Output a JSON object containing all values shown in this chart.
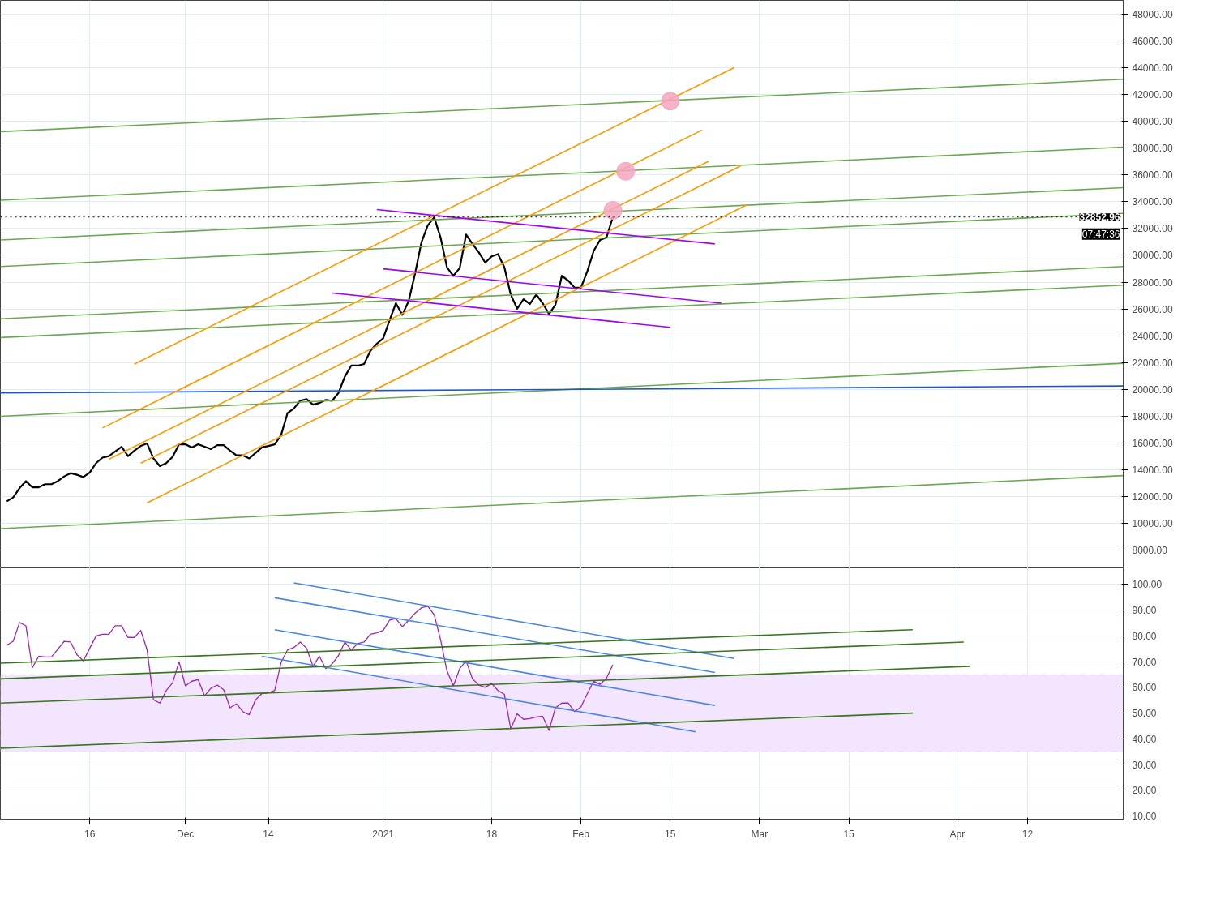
{
  "chart_data": [
    {
      "type": "line",
      "x": [
        "2020-11-03",
        "2020-11-04",
        "2020-11-05",
        "2020-11-06",
        "2020-11-07",
        "2020-11-08",
        "2020-11-09",
        "2020-11-10",
        "2020-11-11",
        "2020-11-12",
        "2020-11-13",
        "2020-11-14",
        "2020-11-15",
        "2020-11-16",
        "2020-11-17",
        "2020-11-18",
        "2020-11-19",
        "2020-11-20",
        "2020-11-21",
        "2020-11-22",
        "2020-11-23",
        "2020-11-24",
        "2020-11-25",
        "2020-11-26",
        "2020-11-27",
        "2020-11-28",
        "2020-11-29",
        "2020-11-30",
        "2020-12-01",
        "2020-12-02",
        "2020-12-03",
        "2020-12-04",
        "2020-12-05",
        "2020-12-06",
        "2020-12-07",
        "2020-12-08",
        "2020-12-09",
        "2020-12-10",
        "2020-12-11",
        "2020-12-12",
        "2020-12-13",
        "2020-12-14",
        "2020-12-15",
        "2020-12-16",
        "2020-12-17",
        "2020-12-18",
        "2020-12-19",
        "2020-12-20",
        "2020-12-21",
        "2020-12-22",
        "2020-12-23",
        "2020-12-24",
        "2020-12-25",
        "2020-12-26",
        "2020-12-27",
        "2020-12-28",
        "2020-12-29",
        "2020-12-30",
        "2020-12-31",
        "2021-01-01",
        "2021-01-02",
        "2021-01-03",
        "2021-01-04",
        "2021-01-05",
        "2021-01-06",
        "2021-01-07",
        "2021-01-08",
        "2021-01-09",
        "2021-01-10",
        "2021-01-11",
        "2021-01-12",
        "2021-01-13",
        "2021-01-14",
        "2021-01-15",
        "2021-01-16",
        "2021-01-17",
        "2021-01-18",
        "2021-01-19",
        "2021-01-20",
        "2021-01-21",
        "2021-01-22",
        "2021-01-23",
        "2021-01-24",
        "2021-01-25",
        "2021-01-26",
        "2021-01-27",
        "2021-01-28",
        "2021-01-29",
        "2021-01-30",
        "2021-01-31",
        "2021-02-01",
        "2021-02-02",
        "2021-02-03",
        "2021-02-04",
        "2021-02-05",
        "2021-02-06"
      ],
      "series": [
        {
          "color": "#000000",
          "values": [
            11660,
            11950,
            12650,
            13170,
            12710,
            12710,
            12940,
            12940,
            13170,
            13520,
            13760,
            13640,
            13470,
            13810,
            14510,
            14920,
            15030,
            15380,
            15730,
            15030,
            15440,
            15790,
            15970,
            14860,
            14280,
            14510,
            14980,
            15910,
            15910,
            15680,
            15910,
            15730,
            15560,
            15850,
            15850,
            15440,
            15090,
            15090,
            14860,
            15270,
            15680,
            15790,
            15910,
            16600,
            18230,
            18580,
            19160,
            19280,
            18870,
            18990,
            19220,
            19160,
            19740,
            20970,
            21780,
            21780,
            21900,
            22880,
            23410,
            23810,
            25150,
            26430,
            25560,
            26600,
            28640,
            30970,
            32240,
            32830,
            31320,
            29100,
            28470,
            29050,
            31550,
            30850,
            30210,
            29450,
            29920,
            30090,
            29100,
            27070,
            26020,
            26720,
            26370,
            27070,
            26430,
            25620,
            26310,
            28470,
            28120,
            27590,
            27590,
            28810,
            30330,
            31140,
            31320,
            32850
          ]
        },
        {
          "color": "#6aa84f",
          "x": [
            "2020-11-02",
            "2021-04-27"
          ],
          "values": [
            39220,
            43120
          ]
        },
        {
          "color": "#6aa84f",
          "x": [
            "2020-11-02",
            "2021-04-27"
          ],
          "values": [
            34100,
            38060
          ]
        },
        {
          "color": "#6aa84f",
          "x": [
            "2020-11-02",
            "2021-04-27"
          ],
          "values": [
            31140,
            35040
          ]
        },
        {
          "color": "#6aa84f",
          "x": [
            "2020-11-02",
            "2021-04-27"
          ],
          "values": [
            29160,
            33120
          ]
        },
        {
          "color": "#6aa84f",
          "x": [
            "2020-11-02",
            "2021-04-27"
          ],
          "values": [
            25270,
            29160
          ]
        },
        {
          "color": "#6aa84f",
          "x": [
            "2020-11-02",
            "2021-04-27"
          ],
          "values": [
            23870,
            27770
          ]
        },
        {
          "color": "#6aa84f",
          "x": [
            "2020-11-02",
            "2021-04-27"
          ],
          "values": [
            18000,
            21950
          ]
        },
        {
          "color": "#6aa84f",
          "x": [
            "2020-11-02",
            "2021-04-27"
          ],
          "values": [
            9630,
            13580
          ]
        },
        {
          "color": "#1c56c9",
          "x": [
            "2020-11-02",
            "2021-04-27"
          ],
          "values": [
            19740,
            20260
          ]
        },
        {
          "color": "#ff9800",
          "x": [
            "2020-11-23",
            "2021-02-25"
          ],
          "values": [
            21900,
            43990
          ]
        },
        {
          "color": "#ff9800",
          "x": [
            "2020-11-18",
            "2021-02-20"
          ],
          "values": [
            17130,
            39340
          ]
        },
        {
          "color": "#ff9800",
          "x": [
            "2020-11-19",
            "2021-02-21"
          ],
          "values": [
            14800,
            37010
          ]
        },
        {
          "color": "#ff9800",
          "x": [
            "2020-11-24",
            "2021-02-26"
          ],
          "values": [
            14510,
            36660
          ]
        },
        {
          "color": "#ff9800",
          "x": [
            "2020-11-25",
            "2021-02-27"
          ],
          "values": [
            11550,
            33760
          ]
        },
        {
          "color": "#a100f2",
          "x": [
            "2020-12-31",
            "2021-02-22"
          ],
          "values": [
            33410,
            30850
          ]
        },
        {
          "color": "#a100f2",
          "x": [
            "2021-01-01",
            "2021-02-23"
          ],
          "values": [
            28990,
            26430
          ]
        },
        {
          "color": "#a100f2",
          "x": [
            "2020-12-24",
            "2021-02-15"
          ],
          "values": [
            27190,
            24630
          ]
        },
        {
          "type": "scatter",
          "marker": "circle",
          "color": "#f4a6c0",
          "x": [
            "2021-02-15",
            "2021-02-08",
            "2021-02-06"
          ],
          "values": [
            41490,
            36260,
            33350
          ]
        }
      ],
      "xlim": [
        "2020-11-02",
        "2021-04-27"
      ],
      "ylim": [
        6700,
        49000
      ],
      "xticks": [
        {
          "value": "2020-11-16",
          "label": null
        },
        {
          "value": "2020-12-01",
          "label": null
        },
        {
          "value": "2020-12-14",
          "label": null
        },
        {
          "value": "2021-01-01",
          "label": null
        },
        {
          "value": "2021-01-18",
          "label": null
        },
        {
          "value": "2021-02-01",
          "label": null
        },
        {
          "value": "2021-02-15",
          "label": null
        },
        {
          "value": "2021-03-01",
          "label": null
        },
        {
          "value": "2021-03-15",
          "label": null
        },
        {
          "value": "2021-04-01",
          "label": null
        },
        {
          "value": "2021-04-12",
          "label": null
        }
      ],
      "yticks": [
        {
          "value": 8000,
          "label": "8000.00"
        },
        {
          "value": 10000,
          "label": "10000.00"
        },
        {
          "value": 12000,
          "label": "12000.00"
        },
        {
          "value": 14000,
          "label": "14000.00"
        },
        {
          "value": 16000,
          "label": "16000.00"
        },
        {
          "value": 18000,
          "label": "18000.00"
        },
        {
          "value": 20000,
          "label": "20000.00"
        },
        {
          "value": 22000,
          "label": "22000.00"
        },
        {
          "value": 24000,
          "label": "24000.00"
        },
        {
          "value": 26000,
          "label": "26000.00"
        },
        {
          "value": 28000,
          "label": "28000.00"
        },
        {
          "value": 30000,
          "label": "30000.00"
        },
        {
          "value": 32000,
          "label": "32000.00"
        },
        {
          "value": 34000,
          "label": "34000.00"
        },
        {
          "value": 36000,
          "label": "36000.00"
        },
        {
          "value": 38000,
          "label": "38000.00"
        },
        {
          "value": 40000,
          "label": "40000.00"
        },
        {
          "value": 42000,
          "label": "42000.00"
        },
        {
          "value": 44000,
          "label": "44000.00"
        },
        {
          "value": 46000,
          "label": "46000.00"
        },
        {
          "value": 48000,
          "label": "48000.00"
        }
      ],
      "ref_lines": [
        {
          "axis": "y",
          "value": 32852.96,
          "label": "32852.96",
          "color": "#000000",
          "line_style": "dotted"
        }
      ],
      "annotations": [
        "07:47:36"
      ],
      "grid": true,
      "tick_labels": "y"
    },
    {
      "type": "line",
      "x": [
        "2020-11-03",
        "2020-11-04",
        "2020-11-05",
        "2020-11-06",
        "2020-11-07",
        "2020-11-08",
        "2020-11-09",
        "2020-11-10",
        "2020-11-11",
        "2020-11-12",
        "2020-11-13",
        "2020-11-14",
        "2020-11-15",
        "2020-11-16",
        "2020-11-17",
        "2020-11-18",
        "2020-11-19",
        "2020-11-20",
        "2020-11-21",
        "2020-11-22",
        "2020-11-23",
        "2020-11-24",
        "2020-11-25",
        "2020-11-26",
        "2020-11-27",
        "2020-11-28",
        "2020-11-29",
        "2020-11-30",
        "2020-12-01",
        "2020-12-02",
        "2020-12-03",
        "2020-12-04",
        "2020-12-05",
        "2020-12-06",
        "2020-12-07",
        "2020-12-08",
        "2020-12-09",
        "2020-12-10",
        "2020-12-11",
        "2020-12-12",
        "2020-12-13",
        "2020-12-14",
        "2020-12-15",
        "2020-12-16",
        "2020-12-17",
        "2020-12-18",
        "2020-12-19",
        "2020-12-20",
        "2020-12-21",
        "2020-12-22",
        "2020-12-23",
        "2020-12-24",
        "2020-12-25",
        "2020-12-26",
        "2020-12-27",
        "2020-12-28",
        "2020-12-29",
        "2020-12-30",
        "2020-12-31",
        "2021-01-01",
        "2021-01-02",
        "2021-01-03",
        "2021-01-04",
        "2021-01-05",
        "2021-01-06",
        "2021-01-07",
        "2021-01-08",
        "2021-01-09",
        "2021-01-10",
        "2021-01-11",
        "2021-01-12",
        "2021-01-13",
        "2021-01-14",
        "2021-01-15",
        "2021-01-16",
        "2021-01-17",
        "2021-01-18",
        "2021-01-19",
        "2021-01-20",
        "2021-01-21",
        "2021-01-22",
        "2021-01-23",
        "2021-01-24",
        "2021-01-25",
        "2021-01-26",
        "2021-01-27",
        "2021-01-28",
        "2021-01-29",
        "2021-01-30",
        "2021-01-31",
        "2021-02-01",
        "2021-02-02",
        "2021-02-03",
        "2021-02-04",
        "2021-02-05",
        "2021-02-06"
      ],
      "series": [
        {
          "color": "#9c27b0",
          "values": [
            76.4,
            77.9,
            85.2,
            83.9,
            67.6,
            72.1,
            71.8,
            71.8,
            74.8,
            77.9,
            77.6,
            72.7,
            70.3,
            75.2,
            80.0,
            80.6,
            80.6,
            83.9,
            83.9,
            79.4,
            79.4,
            82.1,
            74.5,
            55.2,
            53.9,
            58.8,
            61.8,
            70.0,
            60.6,
            62.4,
            63.0,
            56.7,
            59.7,
            60.9,
            59.1,
            52.1,
            53.6,
            50.6,
            49.4,
            55.2,
            57.6,
            57.9,
            58.8,
            69.7,
            74.5,
            75.5,
            77.6,
            75.2,
            68.2,
            72.1,
            67.3,
            69.1,
            72.4,
            77.6,
            74.5,
            77.0,
            77.6,
            80.6,
            81.2,
            82.1,
            86.1,
            86.7,
            83.6,
            86.1,
            88.8,
            90.9,
            91.5,
            88.2,
            78.5,
            66.4,
            60.6,
            67.3,
            70.3,
            63.3,
            60.9,
            60.0,
            61.5,
            58.8,
            57.3,
            43.9,
            49.7,
            47.6,
            47.9,
            48.5,
            48.8,
            43.3,
            52.1,
            53.9,
            53.9,
            50.6,
            52.4,
            57.6,
            62.4,
            61.2,
            63.6,
            68.8
          ]
        },
        {
          "color": "#4a86e8",
          "x": [
            "2020-12-18",
            "2021-02-25"
          ],
          "values": [
            100.6,
            71.2
          ]
        },
        {
          "color": "#4a86e8",
          "x": [
            "2020-12-15",
            "2021-02-22"
          ],
          "values": [
            94.8,
            65.8
          ]
        },
        {
          "color": "#4a86e8",
          "x": [
            "2020-12-15",
            "2021-02-22"
          ],
          "values": [
            82.4,
            53.0
          ]
        },
        {
          "color": "#4a86e8",
          "x": [
            "2020-12-13",
            "2021-02-19"
          ],
          "values": [
            72.1,
            42.7
          ]
        },
        {
          "color": "#38761d",
          "x": [
            "2020-11-02",
            "2021-03-25"
          ],
          "values": [
            69.4,
            82.4
          ]
        },
        {
          "color": "#38761d",
          "x": [
            "2020-11-02",
            "2021-04-02"
          ],
          "values": [
            63.3,
            77.6
          ]
        },
        {
          "color": "#38761d",
          "x": [
            "2020-11-02",
            "2021-04-03"
          ],
          "values": [
            53.9,
            68.2
          ]
        },
        {
          "color": "#38761d",
          "x": [
            "2020-11-02",
            "2021-03-25"
          ],
          "values": [
            36.4,
            50.0
          ]
        }
      ],
      "xlim": [
        "2020-11-02",
        "2021-04-27"
      ],
      "ylim": [
        8.8,
        106.4
      ],
      "xticks": [
        {
          "value": "2020-11-16",
          "label": "16"
        },
        {
          "value": "2020-12-01",
          "label": "Dec"
        },
        {
          "value": "2020-12-14",
          "label": "14"
        },
        {
          "value": "2021-01-01",
          "label": "2021"
        },
        {
          "value": "2021-01-18",
          "label": "18"
        },
        {
          "value": "2021-02-01",
          "label": "Feb"
        },
        {
          "value": "2021-02-15",
          "label": "15"
        },
        {
          "value": "2021-03-01",
          "label": "Mar"
        },
        {
          "value": "2021-03-15",
          "label": "15"
        },
        {
          "value": "2021-04-01",
          "label": "Apr"
        },
        {
          "value": "2021-04-12",
          "label": "12"
        }
      ],
      "yticks": [
        {
          "value": 10,
          "label": "10.00"
        },
        {
          "value": 20,
          "label": "20.00"
        },
        {
          "value": 30,
          "label": "30.00"
        },
        {
          "value": 40,
          "label": "40.00"
        },
        {
          "value": 50,
          "label": "50.00"
        },
        {
          "value": 60,
          "label": "60.00"
        },
        {
          "value": 70,
          "label": "70.00"
        },
        {
          "value": 80,
          "label": "80.00"
        },
        {
          "value": 90,
          "label": "90.00"
        },
        {
          "value": 100,
          "label": "100.00"
        }
      ],
      "bands": [
        {
          "axis": "y",
          "from": 35,
          "to": 65,
          "color": "#f3e5fd"
        }
      ],
      "grid": true
    }
  ]
}
